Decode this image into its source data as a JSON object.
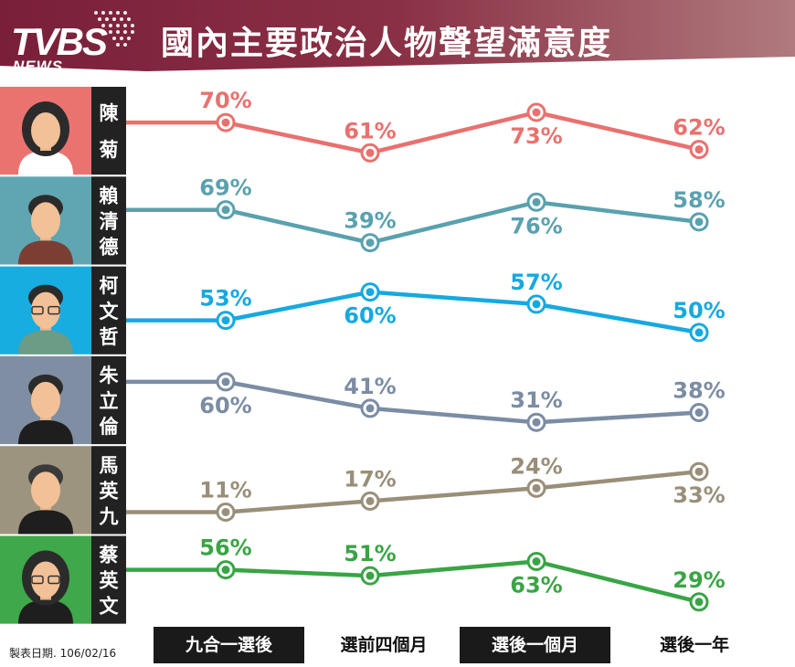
{
  "header": {
    "logo_main": "TVBS",
    "logo_sub": "NEWS",
    "title": "國內主要政治人物聲望滿意度"
  },
  "chart_data": {
    "type": "line",
    "title": "國內主要政治人物聲望滿意度",
    "categories": [
      "九合一選後",
      "選前四個月",
      "選後一個月",
      "選後一年"
    ],
    "series": [
      {
        "name": "陳菊",
        "values": [
          70,
          61,
          73,
          62
        ],
        "color": "#e8716f",
        "band": "#ea7370",
        "avatar": "woman-short-hair"
      },
      {
        "name": "賴清德",
        "values": [
          69,
          39,
          76,
          58
        ],
        "color": "#5aa1ae",
        "band": "#5fa6b2",
        "avatar": "man-dark-hair"
      },
      {
        "name": "柯文哲",
        "values": [
          53,
          60,
          57,
          50
        ],
        "color": "#16a9df",
        "band": "#17ade0",
        "avatar": "man-glasses"
      },
      {
        "name": "朱立倫",
        "values": [
          60,
          41,
          31,
          38
        ],
        "color": "#7b8ca3",
        "band": "#7f8ea2",
        "avatar": "man-black-hair"
      },
      {
        "name": "馬英九",
        "values": [
          11,
          17,
          24,
          33
        ],
        "color": "#998f79",
        "band": "#9d9480",
        "avatar": "man-grey-suit"
      },
      {
        "name": "蔡英文",
        "values": [
          56,
          51,
          63,
          29
        ],
        "color": "#3aa445",
        "band": "#3fa84a",
        "avatar": "woman-glasses"
      }
    ],
    "ylabel": "",
    "xlabel": ""
  },
  "footer": {
    "date_label": "製表日期.",
    "date_value": "106/02/16"
  }
}
